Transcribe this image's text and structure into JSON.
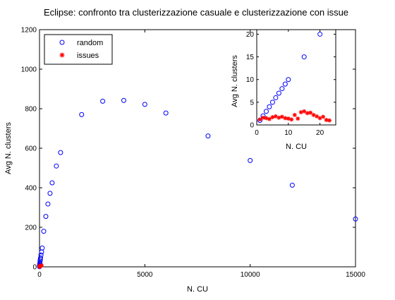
{
  "chart_data": [
    {
      "type": "scatter",
      "title": "Eclipse: confronto tra clusterizzazione casuale e clusterizzazione con issue",
      "xlabel": "N. CU",
      "ylabel": "Avg N. clusters",
      "xlim": [
        0,
        15000
      ],
      "ylim": [
        0,
        1200
      ],
      "x_ticks": [
        0,
        5000,
        10000,
        15000
      ],
      "x_tick_labels": [
        "0",
        "5000",
        "10000",
        "15000"
      ],
      "y_ticks": [
        0,
        200,
        400,
        600,
        800,
        1000,
        1200
      ],
      "y_tick_labels": [
        "0",
        "200",
        "400",
        "600",
        "800",
        "1000",
        "1200"
      ],
      "grid": false,
      "legend": "top-left",
      "series": [
        {
          "name": "random",
          "marker": "circle",
          "color": "#0000ff",
          "points": [
            [
              1,
              1
            ],
            [
              2,
              2
            ],
            [
              3,
              3
            ],
            [
              5,
              5
            ],
            [
              8,
              8
            ],
            [
              10,
              10
            ],
            [
              15,
              15
            ],
            [
              20,
              20
            ],
            [
              30,
              30
            ],
            [
              40,
              38
            ],
            [
              50,
              45
            ],
            [
              70,
              60
            ],
            [
              100,
              75
            ],
            [
              130,
              95
            ],
            [
              200,
              180
            ],
            [
              300,
              255
            ],
            [
              400,
              318
            ],
            [
              500,
              372
            ],
            [
              600,
              425
            ],
            [
              800,
              510
            ],
            [
              1000,
              578
            ],
            [
              2000,
              770
            ],
            [
              3000,
              838
            ],
            [
              4000,
              842
            ],
            [
              5000,
              822
            ],
            [
              6000,
              778
            ],
            [
              8000,
              662
            ],
            [
              10000,
              538
            ],
            [
              12000,
              413
            ],
            [
              15000,
              242
            ]
          ]
        },
        {
          "name": "issues",
          "marker": "star",
          "color": "#ff0000",
          "points": [
            [
              1,
              1
            ],
            [
              2,
              1
            ],
            [
              3,
              2
            ],
            [
              5,
              2
            ],
            [
              8,
              2
            ],
            [
              10,
              3
            ],
            [
              15,
              3
            ],
            [
              20,
              3
            ],
            [
              30,
              4
            ],
            [
              50,
              5
            ],
            [
              70,
              6
            ],
            [
              100,
              7
            ]
          ]
        }
      ]
    },
    {
      "type": "scatter",
      "title": "",
      "xlabel": "N. CU",
      "ylabel": "Avg N. clusters",
      "xlim": [
        0,
        25
      ],
      "ylim": [
        0,
        21
      ],
      "x_ticks": [
        0,
        10,
        20
      ],
      "x_tick_labels": [
        "0",
        "10",
        "20"
      ],
      "y_ticks": [
        0,
        5,
        10,
        15,
        20
      ],
      "y_tick_labels": [
        "0",
        "5",
        "10",
        "15",
        "20"
      ],
      "grid": false,
      "series": [
        {
          "name": "random",
          "marker": "circle",
          "color": "#0000ff",
          "points": [
            [
              1,
              1
            ],
            [
              2,
              2
            ],
            [
              3,
              3
            ],
            [
              4,
              4
            ],
            [
              5,
              5
            ],
            [
              6,
              6
            ],
            [
              7,
              7
            ],
            [
              8,
              8
            ],
            [
              9,
              9
            ],
            [
              10,
              10
            ],
            [
              15,
              15
            ],
            [
              20,
              20
            ]
          ]
        },
        {
          "name": "issues",
          "marker": "star",
          "color": "#ff0000",
          "points": [
            [
              1,
              1.2
            ],
            [
              2,
              1.6
            ],
            [
              3,
              1.5
            ],
            [
              4,
              1.3
            ],
            [
              5,
              1.7
            ],
            [
              6,
              1.9
            ],
            [
              7,
              1.6
            ],
            [
              8,
              1.8
            ],
            [
              9,
              1.5
            ],
            [
              10,
              1.4
            ],
            [
              11,
              1.2
            ],
            [
              12,
              2.2
            ],
            [
              13,
              1.4
            ],
            [
              14,
              2.8
            ],
            [
              15,
              3.0
            ],
            [
              16,
              2.6
            ],
            [
              17,
              2.7
            ],
            [
              18,
              2.2
            ],
            [
              19,
              1.9
            ],
            [
              20,
              1.5
            ],
            [
              21,
              1.8
            ],
            [
              22,
              1.1
            ],
            [
              23,
              1.0
            ]
          ]
        }
      ]
    }
  ]
}
